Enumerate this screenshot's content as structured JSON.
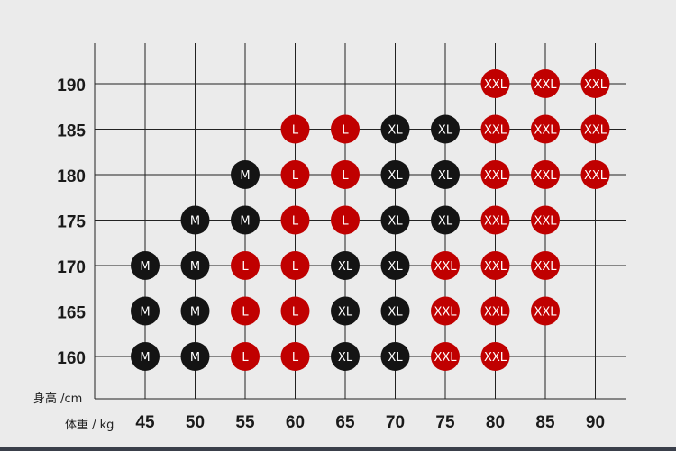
{
  "chart_data": {
    "type": "scatter",
    "ylabel": "身高 /cm",
    "xlabel": "体重 / kg",
    "x_ticks": [
      45,
      50,
      55,
      60,
      65,
      70,
      75,
      80,
      85,
      90
    ],
    "y_ticks": [
      190,
      185,
      180,
      175,
      170,
      165,
      160
    ],
    "colors": {
      "M": "#141414",
      "L": "#c00000",
      "XL": "#141414",
      "XXL": "#c00000"
    },
    "rows": [
      {
        "height": 190,
        "cells": {
          "80": "XXL",
          "85": "XXL",
          "90": "XXL"
        }
      },
      {
        "height": 185,
        "cells": {
          "60": "L",
          "65": "L",
          "70": "XL",
          "75": "XL",
          "80": "XXL",
          "85": "XXL",
          "90": "XXL"
        }
      },
      {
        "height": 180,
        "cells": {
          "55": "M",
          "60": "L",
          "65": "L",
          "70": "XL",
          "75": "XL",
          "80": "XXL",
          "85": "XXL",
          "90": "XXL"
        }
      },
      {
        "height": 175,
        "cells": {
          "50": "M",
          "55": "M",
          "60": "L",
          "65": "L",
          "70": "XL",
          "75": "XL",
          "80": "XXL",
          "85": "XXL"
        }
      },
      {
        "height": 170,
        "cells": {
          "45": "M",
          "50": "M",
          "55": "L",
          "60": "L",
          "65": "XL",
          "70": "XL",
          "75": "XXL",
          "80": "XXL",
          "85": "XXL"
        }
      },
      {
        "height": 165,
        "cells": {
          "45": "M",
          "50": "M",
          "55": "L",
          "60": "L",
          "65": "XL",
          "70": "XL",
          "75": "XXL",
          "80": "XXL",
          "85": "XXL"
        }
      },
      {
        "height": 160,
        "cells": {
          "45": "M",
          "50": "M",
          "55": "L",
          "60": "L",
          "65": "XL",
          "70": "XL",
          "75": "XXL",
          "80": "XXL"
        }
      }
    ]
  }
}
